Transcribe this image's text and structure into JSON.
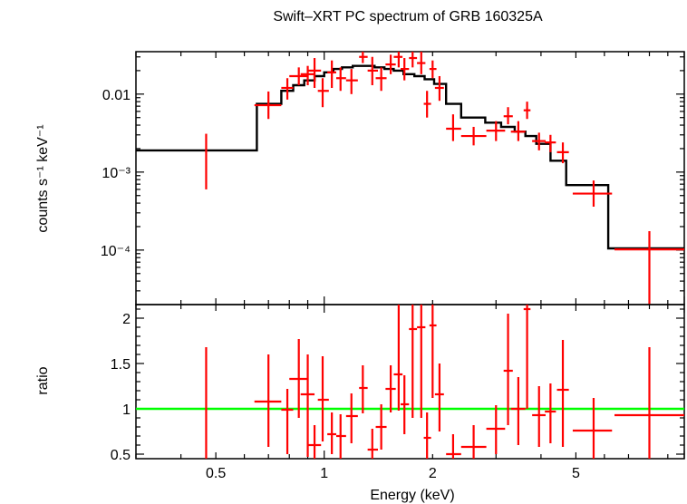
{
  "chart_data": [
    {
      "type": "step+errorbar",
      "title": "Swift–XRT PC spectrum of GRB 160325A",
      "ylabel": "counts s⁻¹ keV⁻¹",
      "xscale": "log",
      "yscale": "log",
      "xlim": [
        0.3,
        10
      ],
      "ylim": [
        2e-05,
        0.035
      ],
      "x_ticks": [
        0.5,
        1,
        2,
        5
      ],
      "y_ticks": [
        {
          "v": 0.01,
          "label": "0.01"
        },
        {
          "v": 0.001,
          "label": "10⁻³"
        },
        {
          "v": 0.0001,
          "label": "10⁻⁴"
        }
      ],
      "model": {
        "color": "#000000",
        "steps": [
          [
            0.3,
            0.65,
            0.0019
          ],
          [
            0.65,
            0.76,
            0.0075
          ],
          [
            0.76,
            0.82,
            0.011
          ],
          [
            0.82,
            0.88,
            0.013
          ],
          [
            0.88,
            0.94,
            0.015
          ],
          [
            0.94,
            1.0,
            0.017
          ],
          [
            1.0,
            1.06,
            0.019
          ],
          [
            1.06,
            1.12,
            0.021
          ],
          [
            1.12,
            1.2,
            0.022
          ],
          [
            1.2,
            1.28,
            0.023
          ],
          [
            1.28,
            1.38,
            0.023
          ],
          [
            1.38,
            1.47,
            0.022
          ],
          [
            1.47,
            1.56,
            0.021
          ],
          [
            1.56,
            1.66,
            0.02
          ],
          [
            1.66,
            1.78,
            0.018
          ],
          [
            1.78,
            1.9,
            0.017
          ],
          [
            1.9,
            2.02,
            0.0155
          ],
          [
            2.02,
            2.18,
            0.0135
          ],
          [
            2.18,
            2.4,
            0.0075
          ],
          [
            2.4,
            2.8,
            0.005
          ],
          [
            2.8,
            3.1,
            0.0043
          ],
          [
            3.1,
            3.38,
            0.0038
          ],
          [
            3.38,
            3.62,
            0.0033
          ],
          [
            3.62,
            3.88,
            0.0029
          ],
          [
            3.88,
            4.25,
            0.0023
          ],
          [
            4.25,
            4.7,
            0.0014
          ],
          [
            4.7,
            6.15,
            0.00068
          ],
          [
            6.15,
            10.0,
            0.000105
          ]
        ]
      },
      "series": [
        {
          "color": "#ff0000",
          "points": [
            [
              0.47,
              0.0019,
              0.0031,
              0.0006,
              0.47,
              0.47
            ],
            [
              0.7,
              0.0072,
              0.0108,
              0.0048,
              0.64,
              0.76
            ],
            [
              0.79,
              0.012,
              0.016,
              0.0085,
              0.76,
              0.82
            ],
            [
              0.85,
              0.017,
              0.022,
              0.013,
              0.8,
              0.9
            ],
            [
              0.9,
              0.018,
              0.023,
              0.013,
              0.86,
              0.94
            ],
            [
              0.94,
              0.02,
              0.029,
              0.012,
              0.9,
              0.98
            ],
            [
              0.99,
              0.011,
              0.016,
              0.0068,
              0.96,
              1.03
            ],
            [
              1.05,
              0.019,
              0.027,
              0.012,
              1.02,
              1.08
            ],
            [
              1.11,
              0.016,
              0.022,
              0.011,
              1.08,
              1.15
            ],
            [
              1.19,
              0.015,
              0.021,
              0.01,
              1.15,
              1.24
            ],
            [
              1.28,
              0.03,
              0.035,
              0.025,
              1.25,
              1.32
            ],
            [
              1.36,
              0.02,
              0.03,
              0.013,
              1.32,
              1.41
            ],
            [
              1.44,
              0.016,
              0.022,
              0.011,
              1.39,
              1.49
            ],
            [
              1.53,
              0.024,
              0.032,
              0.018,
              1.48,
              1.58
            ],
            [
              1.61,
              0.03,
              0.035,
              0.022,
              1.56,
              1.65
            ],
            [
              1.67,
              0.021,
              0.029,
              0.015,
              1.63,
              1.72
            ],
            [
              1.76,
              0.029,
              0.035,
              0.022,
              1.72,
              1.81
            ],
            [
              1.86,
              0.025,
              0.035,
              0.018,
              1.81,
              1.91
            ],
            [
              1.93,
              0.0075,
              0.011,
              0.005,
              1.89,
              1.98
            ],
            [
              2.0,
              0.021,
              0.027,
              0.016,
              1.96,
              2.05
            ],
            [
              2.09,
              0.012,
              0.017,
              0.0082,
              2.03,
              2.15
            ],
            [
              2.28,
              0.0036,
              0.0055,
              0.0025,
              2.18,
              2.4
            ],
            [
              2.6,
              0.0029,
              0.0038,
              0.0022,
              2.4,
              2.82
            ],
            [
              3.0,
              0.0034,
              0.0045,
              0.0025,
              2.82,
              3.18
            ],
            [
              3.24,
              0.0052,
              0.0068,
              0.0041,
              3.15,
              3.34
            ],
            [
              3.46,
              0.0033,
              0.0045,
              0.0025,
              3.3,
              3.62
            ],
            [
              3.66,
              0.0062,
              0.008,
              0.0048,
              3.58,
              3.74
            ],
            [
              3.95,
              0.0025,
              0.0032,
              0.0019,
              3.78,
              4.12
            ],
            [
              4.25,
              0.0024,
              0.003,
              0.0018,
              4.1,
              4.4
            ],
            [
              4.6,
              0.0018,
              0.0024,
              0.0013,
              4.43,
              4.78
            ],
            [
              5.6,
              0.00053,
              0.00078,
              0.00036,
              4.9,
              6.3
            ],
            [
              8.0,
              0.000102,
              0.000175,
              2e-05,
              6.4,
              10.0
            ]
          ]
        }
      ]
    },
    {
      "type": "errorbar",
      "xlabel": "Energy (keV)",
      "ylabel": "ratio",
      "xscale": "log",
      "yscale": "linear",
      "xlim": [
        0.3,
        10
      ],
      "ylim": [
        0.45,
        2.15
      ],
      "x_ticks": [
        {
          "v": 0.5,
          "label": "0.5"
        },
        {
          "v": 1,
          "label": "1"
        },
        {
          "v": 2,
          "label": "2"
        },
        {
          "v": 5,
          "label": "5"
        }
      ],
      "y_ticks": [
        {
          "v": 0.5,
          "label": "0.5"
        },
        {
          "v": 1,
          "label": "1"
        },
        {
          "v": 1.5,
          "label": "1.5"
        },
        {
          "v": 2,
          "label": "2"
        }
      ],
      "reference": {
        "y": 1,
        "color": "#00ff00"
      },
      "series": [
        {
          "color": "#ff0000",
          "points": [
            [
              0.47,
              1.0,
              1.68,
              0.45,
              0.47,
              0.47
            ],
            [
              0.7,
              1.08,
              1.6,
              0.58,
              0.64,
              0.76
            ],
            [
              0.79,
              0.99,
              1.22,
              0.5,
              0.76,
              0.82
            ],
            [
              0.85,
              1.33,
              1.77,
              0.9,
              0.8,
              0.9
            ],
            [
              0.9,
              1.16,
              1.6,
              0.47,
              0.86,
              0.94
            ],
            [
              0.94,
              0.6,
              0.82,
              0.45,
              0.9,
              0.98
            ],
            [
              0.99,
              1.1,
              1.58,
              0.64,
              0.96,
              1.03
            ],
            [
              1.05,
              0.72,
              0.96,
              0.5,
              1.02,
              1.08
            ],
            [
              1.11,
              0.7,
              0.94,
              0.45,
              1.08,
              1.15
            ],
            [
              1.19,
              0.92,
              1.17,
              0.62,
              1.15,
              1.24
            ],
            [
              1.28,
              1.23,
              1.48,
              0.95,
              1.25,
              1.32
            ],
            [
              1.36,
              0.55,
              0.78,
              0.45,
              1.32,
              1.41
            ],
            [
              1.44,
              0.8,
              1.05,
              0.55,
              1.39,
              1.49
            ],
            [
              1.53,
              1.22,
              1.48,
              0.96,
              1.48,
              1.58
            ],
            [
              1.61,
              1.38,
              2.15,
              0.98,
              1.56,
              1.65
            ],
            [
              1.67,
              1.05,
              1.37,
              0.72,
              1.63,
              1.72
            ],
            [
              1.76,
              1.88,
              2.15,
              0.9,
              1.72,
              1.81
            ],
            [
              1.86,
              1.9,
              2.15,
              0.9,
              1.81,
              1.91
            ],
            [
              1.93,
              0.68,
              0.96,
              0.45,
              1.89,
              1.98
            ],
            [
              2.0,
              1.92,
              2.15,
              1.12,
              1.96,
              2.05
            ],
            [
              2.09,
              1.16,
              1.5,
              0.75,
              2.03,
              2.15
            ],
            [
              2.28,
              0.5,
              0.72,
              0.45,
              2.18,
              2.4
            ],
            [
              2.6,
              0.58,
              0.82,
              0.45,
              2.4,
              2.82
            ],
            [
              3.0,
              0.78,
              1.04,
              0.5,
              2.82,
              3.18
            ],
            [
              3.24,
              1.42,
              2.05,
              0.82,
              3.15,
              3.34
            ],
            [
              3.46,
              1.0,
              1.35,
              0.6,
              3.3,
              3.62
            ],
            [
              3.66,
              2.1,
              2.15,
              1.0,
              3.58,
              3.74
            ],
            [
              3.95,
              0.93,
              1.25,
              0.58,
              3.78,
              4.12
            ],
            [
              4.25,
              0.97,
              1.28,
              0.62,
              4.1,
              4.4
            ],
            [
              4.6,
              1.21,
              1.76,
              0.58,
              4.43,
              4.78
            ],
            [
              5.6,
              0.76,
              1.12,
              0.45,
              4.9,
              6.3
            ],
            [
              8.0,
              0.93,
              1.68,
              0.45,
              6.4,
              10.0
            ]
          ]
        }
      ]
    }
  ]
}
